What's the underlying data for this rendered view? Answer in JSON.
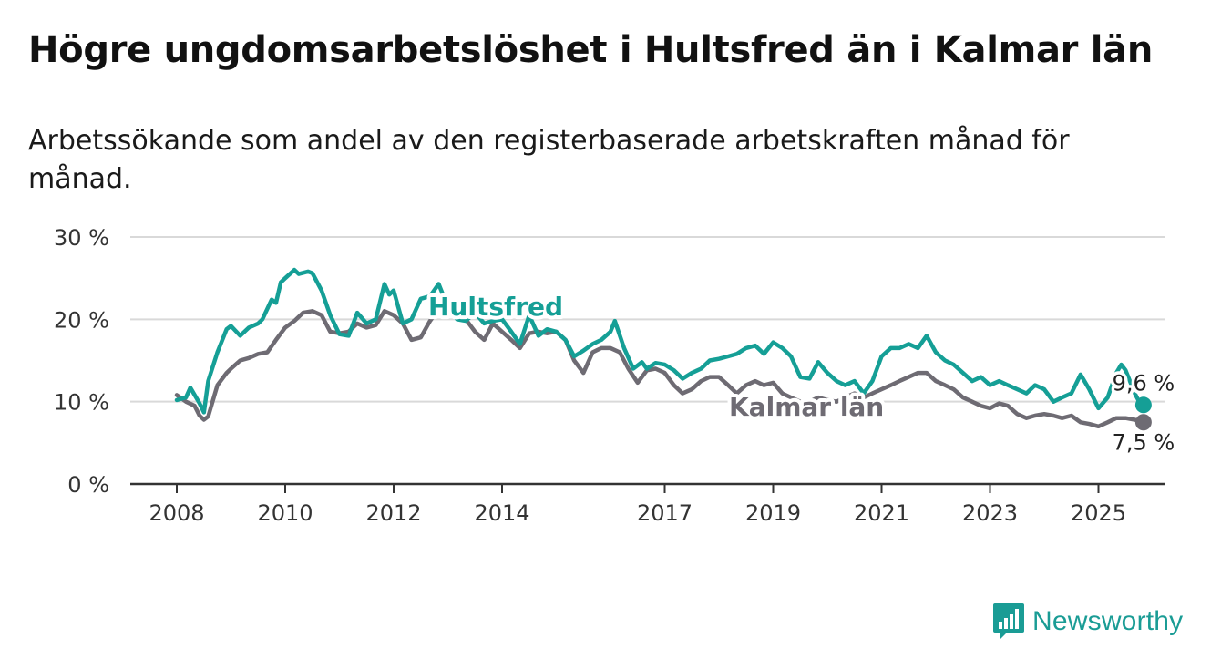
{
  "title": "Högre ungdomsarbetslöshet i Hultsfred än i Kalmar län",
  "subtitle": "Arbetssökande som andel av den registerbaserade arbetskraften månad för månad.",
  "brand": {
    "name": "Newsworthy",
    "color": "#1a9c95",
    "icon": "chart-bars-icon"
  },
  "colors": {
    "hultsfred": "#159f96",
    "kalmar": "#6e6b73",
    "grid": "#d9d9d9",
    "axis": "#333333"
  },
  "chart_data": {
    "type": "line",
    "xlim": [
      2008,
      2025.92
    ],
    "ylim": [
      0,
      30
    ],
    "y_ticks": [
      "0 %",
      "10 %",
      "20 %",
      "30 %"
    ],
    "y_tick_values": [
      0,
      10,
      20,
      30
    ],
    "x_ticks": [
      "2008",
      "2010",
      "2012",
      "2014",
      "2017",
      "2019",
      "2021",
      "2023",
      "2025"
    ],
    "x_tick_values": [
      2008,
      2010,
      2012,
      2014,
      2017,
      2019,
      2021,
      2023,
      2025
    ],
    "grid": true,
    "series": [
      {
        "name": "Hultsfred",
        "end_label": "9,6 %",
        "points": [
          [
            2008.0,
            10.2
          ],
          [
            2008.17,
            10.5
          ],
          [
            2008.25,
            11.7
          ],
          [
            2008.42,
            9.8
          ],
          [
            2008.5,
            8.7
          ],
          [
            2008.58,
            12.5
          ],
          [
            2008.75,
            16.0
          ],
          [
            2008.92,
            18.8
          ],
          [
            2009.0,
            19.2
          ],
          [
            2009.17,
            18.0
          ],
          [
            2009.33,
            19.0
          ],
          [
            2009.5,
            19.5
          ],
          [
            2009.58,
            20.0
          ],
          [
            2009.75,
            22.4
          ],
          [
            2009.83,
            22.0
          ],
          [
            2009.92,
            24.5
          ],
          [
            2010.0,
            25.0
          ],
          [
            2010.17,
            26.0
          ],
          [
            2010.25,
            25.5
          ],
          [
            2010.42,
            25.8
          ],
          [
            2010.5,
            25.6
          ],
          [
            2010.67,
            23.5
          ],
          [
            2010.83,
            20.5
          ],
          [
            2011.0,
            18.2
          ],
          [
            2011.17,
            18.0
          ],
          [
            2011.33,
            20.8
          ],
          [
            2011.5,
            19.5
          ],
          [
            2011.67,
            20.0
          ],
          [
            2011.83,
            24.3
          ],
          [
            2011.92,
            23.0
          ],
          [
            2012.0,
            23.5
          ],
          [
            2012.17,
            19.5
          ],
          [
            2012.33,
            20.0
          ],
          [
            2012.5,
            22.5
          ],
          [
            2012.67,
            22.8
          ],
          [
            2012.83,
            24.3
          ],
          [
            2013.0,
            21.5
          ],
          [
            2013.17,
            20.0
          ],
          [
            2013.33,
            19.8
          ],
          [
            2013.5,
            20.8
          ],
          [
            2013.67,
            19.5
          ],
          [
            2013.83,
            19.8
          ],
          [
            2014.0,
            20.0
          ],
          [
            2014.17,
            18.5
          ],
          [
            2014.33,
            17.0
          ],
          [
            2014.5,
            20.5
          ],
          [
            2014.67,
            18.0
          ],
          [
            2014.83,
            18.8
          ],
          [
            2015.0,
            18.5
          ],
          [
            2015.17,
            17.5
          ],
          [
            2015.33,
            15.5
          ],
          [
            2015.5,
            16.2
          ],
          [
            2015.67,
            17.0
          ],
          [
            2015.83,
            17.5
          ],
          [
            2016.0,
            18.5
          ],
          [
            2016.08,
            19.8
          ],
          [
            2016.25,
            16.5
          ],
          [
            2016.42,
            14.0
          ],
          [
            2016.58,
            14.8
          ],
          [
            2016.67,
            14.0
          ],
          [
            2016.83,
            14.7
          ],
          [
            2017.0,
            14.5
          ],
          [
            2017.17,
            13.8
          ],
          [
            2017.33,
            12.8
          ],
          [
            2017.5,
            13.5
          ],
          [
            2017.67,
            14.0
          ],
          [
            2017.83,
            15.0
          ],
          [
            2018.0,
            15.2
          ],
          [
            2018.17,
            15.5
          ],
          [
            2018.33,
            15.8
          ],
          [
            2018.5,
            16.5
          ],
          [
            2018.67,
            16.8
          ],
          [
            2018.83,
            15.8
          ],
          [
            2019.0,
            17.2
          ],
          [
            2019.17,
            16.5
          ],
          [
            2019.33,
            15.5
          ],
          [
            2019.5,
            13.0
          ],
          [
            2019.67,
            12.8
          ],
          [
            2019.83,
            14.8
          ],
          [
            2020.0,
            13.5
          ],
          [
            2020.17,
            12.5
          ],
          [
            2020.33,
            12.0
          ],
          [
            2020.5,
            12.5
          ],
          [
            2020.67,
            11.0
          ],
          [
            2020.83,
            12.5
          ],
          [
            2021.0,
            15.5
          ],
          [
            2021.17,
            16.5
          ],
          [
            2021.33,
            16.5
          ],
          [
            2021.5,
            17.0
          ],
          [
            2021.67,
            16.5
          ],
          [
            2021.83,
            18.0
          ],
          [
            2022.0,
            16.0
          ],
          [
            2022.17,
            15.0
          ],
          [
            2022.33,
            14.5
          ],
          [
            2022.5,
            13.5
          ],
          [
            2022.67,
            12.5
          ],
          [
            2022.83,
            13.0
          ],
          [
            2023.0,
            12.0
          ],
          [
            2023.17,
            12.5
          ],
          [
            2023.33,
            12.0
          ],
          [
            2023.5,
            11.5
          ],
          [
            2023.67,
            11.0
          ],
          [
            2023.83,
            12.0
          ],
          [
            2024.0,
            11.5
          ],
          [
            2024.17,
            10.0
          ],
          [
            2024.33,
            10.5
          ],
          [
            2024.5,
            11.0
          ],
          [
            2024.67,
            13.3
          ],
          [
            2024.83,
            11.5
          ],
          [
            2025.0,
            9.2
          ],
          [
            2025.17,
            10.5
          ],
          [
            2025.33,
            13.5
          ],
          [
            2025.42,
            14.5
          ],
          [
            2025.5,
            13.8
          ],
          [
            2025.58,
            12.5
          ],
          [
            2025.67,
            11.0
          ],
          [
            2025.75,
            10.0
          ],
          [
            2025.83,
            9.6
          ]
        ]
      },
      {
        "name": "Kalmar län",
        "end_label": "7,5 %",
        "points": [
          [
            2008.0,
            10.8
          ],
          [
            2008.17,
            10.0
          ],
          [
            2008.33,
            9.5
          ],
          [
            2008.42,
            8.3
          ],
          [
            2008.5,
            7.8
          ],
          [
            2008.58,
            8.2
          ],
          [
            2008.75,
            12.0
          ],
          [
            2008.92,
            13.5
          ],
          [
            2009.0,
            14.0
          ],
          [
            2009.17,
            15.0
          ],
          [
            2009.33,
            15.3
          ],
          [
            2009.5,
            15.8
          ],
          [
            2009.67,
            16.0
          ],
          [
            2009.83,
            17.5
          ],
          [
            2010.0,
            19.0
          ],
          [
            2010.17,
            19.8
          ],
          [
            2010.33,
            20.8
          ],
          [
            2010.5,
            21.0
          ],
          [
            2010.67,
            20.5
          ],
          [
            2010.83,
            18.5
          ],
          [
            2011.0,
            18.3
          ],
          [
            2011.17,
            18.5
          ],
          [
            2011.33,
            19.5
          ],
          [
            2011.5,
            19.0
          ],
          [
            2011.67,
            19.3
          ],
          [
            2011.83,
            21.0
          ],
          [
            2012.0,
            20.5
          ],
          [
            2012.17,
            19.5
          ],
          [
            2012.33,
            17.5
          ],
          [
            2012.5,
            17.8
          ],
          [
            2012.67,
            19.8
          ],
          [
            2012.83,
            21.2
          ],
          [
            2013.0,
            21.8
          ],
          [
            2013.17,
            21.5
          ],
          [
            2013.33,
            20.0
          ],
          [
            2013.5,
            18.5
          ],
          [
            2013.67,
            17.5
          ],
          [
            2013.83,
            19.5
          ],
          [
            2014.0,
            18.5
          ],
          [
            2014.17,
            17.5
          ],
          [
            2014.33,
            16.5
          ],
          [
            2014.5,
            18.3
          ],
          [
            2014.67,
            18.5
          ],
          [
            2014.83,
            18.3
          ],
          [
            2015.0,
            18.5
          ],
          [
            2015.17,
            17.5
          ],
          [
            2015.33,
            15.0
          ],
          [
            2015.5,
            13.5
          ],
          [
            2015.67,
            16.0
          ],
          [
            2015.83,
            16.5
          ],
          [
            2016.0,
            16.5
          ],
          [
            2016.17,
            16.0
          ],
          [
            2016.33,
            14.0
          ],
          [
            2016.5,
            12.3
          ],
          [
            2016.67,
            13.8
          ],
          [
            2016.83,
            14.0
          ],
          [
            2017.0,
            13.5
          ],
          [
            2017.17,
            12.0
          ],
          [
            2017.33,
            11.0
          ],
          [
            2017.5,
            11.5
          ],
          [
            2017.67,
            12.5
          ],
          [
            2017.83,
            13.0
          ],
          [
            2018.0,
            13.0
          ],
          [
            2018.17,
            12.0
          ],
          [
            2018.33,
            11.0
          ],
          [
            2018.5,
            12.0
          ],
          [
            2018.67,
            12.5
          ],
          [
            2018.83,
            12.0
          ],
          [
            2019.0,
            12.3
          ],
          [
            2019.17,
            11.0
          ],
          [
            2019.33,
            10.5
          ],
          [
            2019.5,
            10.0
          ],
          [
            2019.67,
            10.0
          ],
          [
            2019.83,
            10.5
          ],
          [
            2020.0,
            10.2
          ],
          [
            2020.17,
            10.0
          ],
          [
            2020.33,
            10.5
          ],
          [
            2020.5,
            11.0
          ],
          [
            2020.67,
            10.5
          ],
          [
            2020.83,
            11.0
          ],
          [
            2021.0,
            11.5
          ],
          [
            2021.17,
            12.0
          ],
          [
            2021.33,
            12.5
          ],
          [
            2021.5,
            13.0
          ],
          [
            2021.67,
            13.5
          ],
          [
            2021.83,
            13.5
          ],
          [
            2022.0,
            12.5
          ],
          [
            2022.17,
            12.0
          ],
          [
            2022.33,
            11.5
          ],
          [
            2022.5,
            10.5
          ],
          [
            2022.67,
            10.0
          ],
          [
            2022.83,
            9.5
          ],
          [
            2023.0,
            9.2
          ],
          [
            2023.17,
            9.8
          ],
          [
            2023.33,
            9.5
          ],
          [
            2023.5,
            8.5
          ],
          [
            2023.67,
            8.0
          ],
          [
            2023.83,
            8.3
          ],
          [
            2024.0,
            8.5
          ],
          [
            2024.17,
            8.3
          ],
          [
            2024.33,
            8.0
          ],
          [
            2024.5,
            8.3
          ],
          [
            2024.67,
            7.5
          ],
          [
            2024.83,
            7.3
          ],
          [
            2025.0,
            7.0
          ],
          [
            2025.17,
            7.5
          ],
          [
            2025.33,
            8.0
          ],
          [
            2025.5,
            8.0
          ],
          [
            2025.67,
            7.8
          ],
          [
            2025.83,
            7.5
          ]
        ]
      }
    ]
  }
}
